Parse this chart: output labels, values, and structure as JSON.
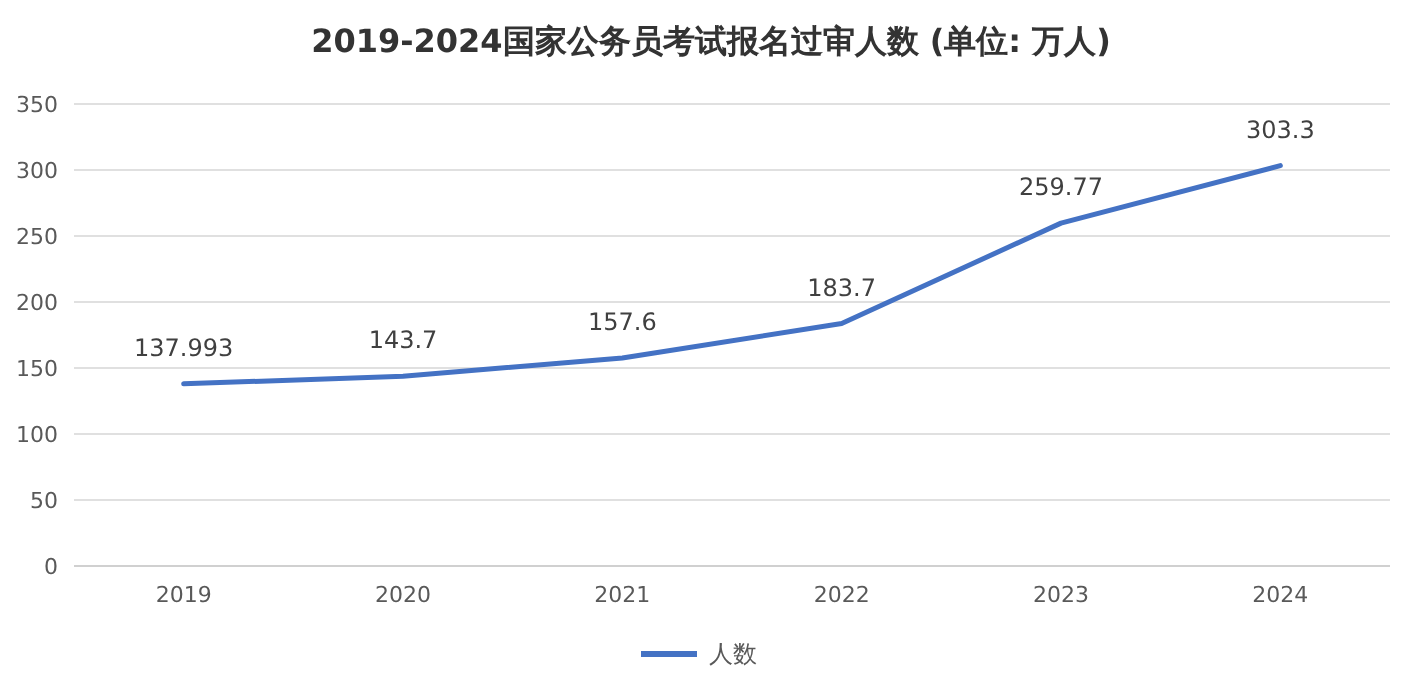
{
  "chart_data": {
    "type": "line",
    "title": "2019-2024国家公务员考试报名过审人数 (单位: 万人)",
    "categories": [
      "2019",
      "2020",
      "2021",
      "2022",
      "2023",
      "2024"
    ],
    "series": [
      {
        "name": "人数",
        "color": "#4472c4",
        "values": [
          137.993,
          143.7,
          157.6,
          183.7,
          259.77,
          303.3
        ]
      }
    ],
    "ylim": [
      0,
      350
    ],
    "yticks": [
      0,
      50,
      100,
      150,
      200,
      250,
      300,
      350
    ],
    "grid": "y",
    "legend": "bottom",
    "data_labels": true,
    "marker": "none",
    "line_style": "solid"
  }
}
